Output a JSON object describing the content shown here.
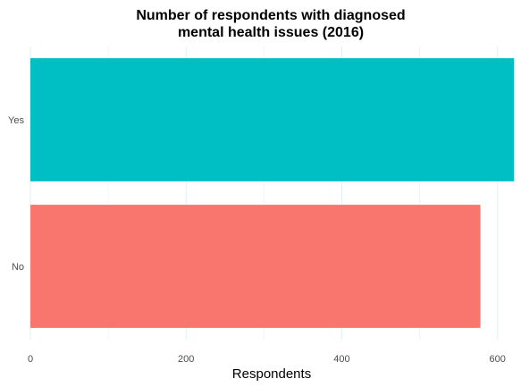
{
  "chart_data": {
    "type": "bar",
    "orientation": "horizontal",
    "title": [
      "Number of respondents with diagnosed",
      "mental health issues (2016)"
    ],
    "categories": [
      "Yes",
      "No"
    ],
    "values": [
      621,
      578
    ],
    "colors": [
      "#00BFC4",
      "#F8766D"
    ],
    "xlabel": "Respondents",
    "ylabel": "",
    "xlim": [
      0,
      621
    ],
    "xticks": [
      0,
      200,
      400,
      600
    ],
    "xtick_labels": [
      "0",
      "200",
      "400",
      "600"
    ],
    "grid": true,
    "legend": "none"
  }
}
